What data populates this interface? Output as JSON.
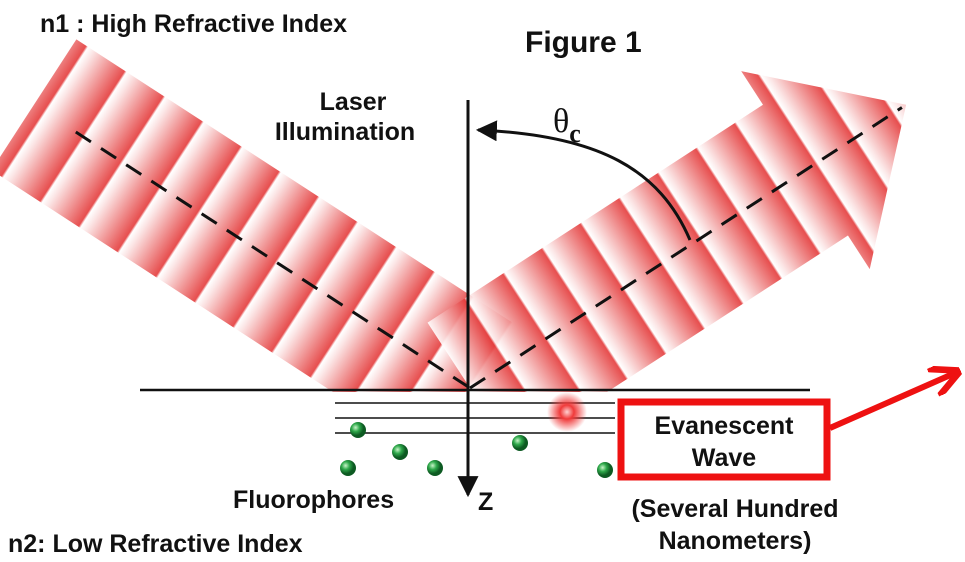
{
  "header": {
    "title": "Figure 1"
  },
  "media": {
    "top": "n1 : High Refractive Index",
    "bottom": "n2: Low Refractive Index"
  },
  "labels": {
    "laser": [
      "Laser",
      "Illumination"
    ],
    "angle": {
      "symbol": "θ",
      "subscript": "c"
    },
    "fluorophores": "Fluorophores",
    "axis": "Z",
    "evanescent": [
      "Evanescent",
      "Wave"
    ],
    "depth": [
      "(Several Hundred",
      "Nanometers)"
    ]
  }
}
